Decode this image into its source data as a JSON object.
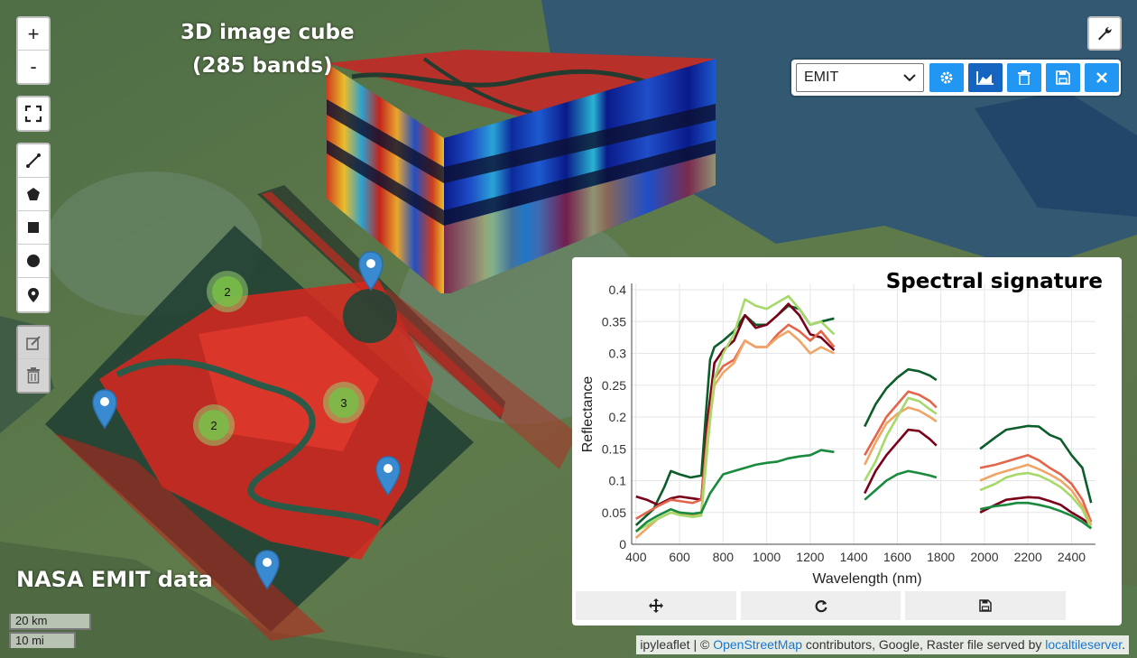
{
  "map": {
    "zoom_in": "+",
    "zoom_out": "-",
    "caption_cube_line1": "3D image cube",
    "caption_cube_line2": "(285 bands)",
    "caption_data": "NASA EMIT data",
    "scale_km": "20 km",
    "scale_mi": "10 mi",
    "clusters": [
      "2",
      "2",
      "3"
    ],
    "attribution": {
      "prefix": "ipyleaflet | © ",
      "osm": "OpenStreetMap",
      "middle": " contributors, Google, Raster file served by ",
      "lts": "localtileserver",
      "suffix": "."
    }
  },
  "toolbar": {
    "selected_layer": "EMIT",
    "icons": [
      "gear-icon",
      "area-chart-icon",
      "trash-icon",
      "save-icon",
      "close-icon"
    ]
  },
  "colors": {
    "button_blue": "#2196f3",
    "button_blue_active": "#1565c0",
    "series": [
      "#0b5d2a",
      "#7a0019",
      "#e4664a",
      "#f0a566",
      "#a6d96a",
      "#1a8a3f"
    ]
  },
  "chart_data": {
    "type": "line",
    "title": "Spectral signature",
    "xlabel": "Wavelength (nm)",
    "ylabel": "Reflectance",
    "xlim": [
      380,
      2510
    ],
    "ylim": [
      0,
      0.41
    ],
    "xticks": [
      400,
      600,
      800,
      1000,
      1200,
      1400,
      1600,
      1800,
      2000,
      2200,
      2400
    ],
    "yticks": [
      0,
      0.05,
      0.1,
      0.15,
      0.2,
      0.25,
      0.3,
      0.35,
      0.4
    ],
    "grid": true,
    "series": [
      {
        "color": "#0b5d2a",
        "segments": [
          [
            [
              400,
              0.03
            ],
            [
              480,
              0.055
            ],
            [
              530,
              0.09
            ],
            [
              560,
              0.115
            ],
            [
              600,
              0.11
            ],
            [
              650,
              0.105
            ],
            [
              700,
              0.108
            ],
            [
              720,
              0.2
            ],
            [
              740,
              0.29
            ],
            [
              760,
              0.31
            ],
            [
              800,
              0.32
            ],
            [
              850,
              0.335
            ],
            [
              900,
              0.36
            ],
            [
              950,
              0.345
            ],
            [
              1000,
              0.345
            ],
            [
              1050,
              0.36
            ],
            [
              1100,
              0.375
            ],
            [
              1150,
              0.37
            ],
            [
              1200,
              0.345
            ],
            [
              1250,
              0.35
            ],
            [
              1310,
              0.355
            ]
          ],
          [
            [
              1450,
              0.185
            ],
            [
              1500,
              0.22
            ],
            [
              1550,
              0.245
            ],
            [
              1600,
              0.262
            ],
            [
              1650,
              0.275
            ],
            [
              1700,
              0.272
            ],
            [
              1750,
              0.265
            ],
            [
              1780,
              0.258
            ]
          ],
          [
            [
              1980,
              0.15
            ],
            [
              2050,
              0.168
            ],
            [
              2100,
              0.18
            ],
            [
              2150,
              0.183
            ],
            [
              2200,
              0.186
            ],
            [
              2250,
              0.185
            ],
            [
              2300,
              0.172
            ],
            [
              2350,
              0.165
            ],
            [
              2400,
              0.14
            ],
            [
              2450,
              0.12
            ],
            [
              2490,
              0.065
            ]
          ]
        ]
      },
      {
        "color": "#7a0019",
        "segments": [
          [
            [
              400,
              0.075
            ],
            [
              450,
              0.07
            ],
            [
              500,
              0.062
            ],
            [
              560,
              0.072
            ],
            [
              600,
              0.075
            ],
            [
              660,
              0.072
            ],
            [
              700,
              0.07
            ],
            [
              730,
              0.2
            ],
            [
              760,
              0.285
            ],
            [
              800,
              0.305
            ],
            [
              850,
              0.32
            ],
            [
              900,
              0.36
            ],
            [
              950,
              0.34
            ],
            [
              1000,
              0.345
            ],
            [
              1050,
              0.36
            ],
            [
              1100,
              0.378
            ],
            [
              1150,
              0.36
            ],
            [
              1200,
              0.33
            ],
            [
              1250,
              0.325
            ],
            [
              1310,
              0.305
            ]
          ],
          [
            [
              1450,
              0.08
            ],
            [
              1500,
              0.115
            ],
            [
              1550,
              0.14
            ],
            [
              1600,
              0.16
            ],
            [
              1650,
              0.18
            ],
            [
              1700,
              0.178
            ],
            [
              1750,
              0.165
            ],
            [
              1780,
              0.155
            ]
          ],
          [
            [
              1980,
              0.05
            ],
            [
              2050,
              0.062
            ],
            [
              2100,
              0.07
            ],
            [
              2150,
              0.072
            ],
            [
              2200,
              0.074
            ],
            [
              2250,
              0.073
            ],
            [
              2300,
              0.068
            ],
            [
              2350,
              0.062
            ],
            [
              2400,
              0.05
            ],
            [
              2450,
              0.04
            ],
            [
              2490,
              0.03
            ]
          ]
        ]
      },
      {
        "color": "#e4664a",
        "segments": [
          [
            [
              400,
              0.04
            ],
            [
              450,
              0.05
            ],
            [
              500,
              0.06
            ],
            [
              560,
              0.07
            ],
            [
              600,
              0.068
            ],
            [
              660,
              0.065
            ],
            [
              700,
              0.07
            ],
            [
              730,
              0.18
            ],
            [
              760,
              0.26
            ],
            [
              800,
              0.28
            ],
            [
              850,
              0.29
            ],
            [
              900,
              0.32
            ],
            [
              950,
              0.31
            ],
            [
              1000,
              0.31
            ],
            [
              1050,
              0.33
            ],
            [
              1100,
              0.345
            ],
            [
              1150,
              0.335
            ],
            [
              1200,
              0.32
            ],
            [
              1250,
              0.335
            ],
            [
              1310,
              0.31
            ]
          ],
          [
            [
              1450,
              0.14
            ],
            [
              1500,
              0.17
            ],
            [
              1550,
              0.2
            ],
            [
              1600,
              0.22
            ],
            [
              1650,
              0.24
            ],
            [
              1700,
              0.235
            ],
            [
              1750,
              0.225
            ],
            [
              1780,
              0.215
            ]
          ],
          [
            [
              1980,
              0.12
            ],
            [
              2050,
              0.125
            ],
            [
              2100,
              0.13
            ],
            [
              2150,
              0.135
            ],
            [
              2200,
              0.14
            ],
            [
              2250,
              0.132
            ],
            [
              2300,
              0.12
            ],
            [
              2350,
              0.11
            ],
            [
              2400,
              0.095
            ],
            [
              2450,
              0.07
            ],
            [
              2490,
              0.035
            ]
          ]
        ]
      },
      {
        "color": "#f0a566",
        "segments": [
          [
            [
              400,
              0.01
            ],
            [
              450,
              0.025
            ],
            [
              500,
              0.04
            ],
            [
              560,
              0.05
            ],
            [
              600,
              0.048
            ],
            [
              660,
              0.045
            ],
            [
              700,
              0.05
            ],
            [
              730,
              0.17
            ],
            [
              760,
              0.25
            ],
            [
              800,
              0.27
            ],
            [
              850,
              0.285
            ],
            [
              900,
              0.32
            ],
            [
              950,
              0.31
            ],
            [
              1000,
              0.31
            ],
            [
              1050,
              0.325
            ],
            [
              1100,
              0.335
            ],
            [
              1150,
              0.32
            ],
            [
              1200,
              0.3
            ],
            [
              1250,
              0.31
            ],
            [
              1310,
              0.3
            ]
          ],
          [
            [
              1450,
              0.125
            ],
            [
              1500,
              0.16
            ],
            [
              1550,
              0.19
            ],
            [
              1600,
              0.205
            ],
            [
              1650,
              0.215
            ],
            [
              1700,
              0.21
            ],
            [
              1750,
              0.2
            ],
            [
              1780,
              0.193
            ]
          ],
          [
            [
              1980,
              0.1
            ],
            [
              2050,
              0.11
            ],
            [
              2100,
              0.115
            ],
            [
              2150,
              0.12
            ],
            [
              2200,
              0.125
            ],
            [
              2250,
              0.118
            ],
            [
              2300,
              0.11
            ],
            [
              2350,
              0.1
            ],
            [
              2400,
              0.085
            ],
            [
              2450,
              0.06
            ],
            [
              2490,
              0.03
            ]
          ]
        ]
      },
      {
        "color": "#a6d96a",
        "segments": [
          [
            [
              400,
              0.02
            ],
            [
              450,
              0.03
            ],
            [
              500,
              0.04
            ],
            [
              560,
              0.05
            ],
            [
              600,
              0.046
            ],
            [
              660,
              0.043
            ],
            [
              700,
              0.045
            ],
            [
              730,
              0.16
            ],
            [
              760,
              0.26
            ],
            [
              800,
              0.3
            ],
            [
              850,
              0.33
            ],
            [
              900,
              0.385
            ],
            [
              950,
              0.375
            ],
            [
              1000,
              0.37
            ],
            [
              1050,
              0.38
            ],
            [
              1100,
              0.39
            ],
            [
              1150,
              0.37
            ],
            [
              1200,
              0.345
            ],
            [
              1250,
              0.35
            ],
            [
              1310,
              0.33
            ]
          ],
          [
            [
              1450,
              0.1
            ],
            [
              1500,
              0.13
            ],
            [
              1550,
              0.17
            ],
            [
              1600,
              0.2
            ],
            [
              1650,
              0.23
            ],
            [
              1700,
              0.225
            ],
            [
              1750,
              0.212
            ],
            [
              1780,
              0.205
            ]
          ],
          [
            [
              1980,
              0.085
            ],
            [
              2050,
              0.095
            ],
            [
              2100,
              0.105
            ],
            [
              2150,
              0.11
            ],
            [
              2200,
              0.112
            ],
            [
              2250,
              0.108
            ],
            [
              2300,
              0.1
            ],
            [
              2350,
              0.09
            ],
            [
              2400,
              0.075
            ],
            [
              2450,
              0.055
            ],
            [
              2490,
              0.025
            ]
          ]
        ]
      },
      {
        "color": "#1a8a3f",
        "segments": [
          [
            [
              400,
              0.02
            ],
            [
              450,
              0.035
            ],
            [
              500,
              0.045
            ],
            [
              560,
              0.055
            ],
            [
              600,
              0.05
            ],
            [
              660,
              0.048
            ],
            [
              700,
              0.05
            ],
            [
              740,
              0.08
            ],
            [
              780,
              0.1
            ],
            [
              800,
              0.11
            ],
            [
              850,
              0.115
            ],
            [
              900,
              0.12
            ],
            [
              950,
              0.125
            ],
            [
              1000,
              0.128
            ],
            [
              1050,
              0.13
            ],
            [
              1100,
              0.135
            ],
            [
              1150,
              0.138
            ],
            [
              1200,
              0.14
            ],
            [
              1250,
              0.148
            ],
            [
              1310,
              0.145
            ]
          ],
          [
            [
              1450,
              0.07
            ],
            [
              1500,
              0.085
            ],
            [
              1550,
              0.1
            ],
            [
              1600,
              0.11
            ],
            [
              1650,
              0.115
            ],
            [
              1700,
              0.112
            ],
            [
              1750,
              0.108
            ],
            [
              1780,
              0.105
            ]
          ],
          [
            [
              1980,
              0.055
            ],
            [
              2050,
              0.06
            ],
            [
              2100,
              0.062
            ],
            [
              2150,
              0.065
            ],
            [
              2200,
              0.065
            ],
            [
              2250,
              0.062
            ],
            [
              2300,
              0.058
            ],
            [
              2350,
              0.052
            ],
            [
              2400,
              0.045
            ],
            [
              2450,
              0.035
            ],
            [
              2490,
              0.025
            ]
          ]
        ]
      }
    ]
  }
}
